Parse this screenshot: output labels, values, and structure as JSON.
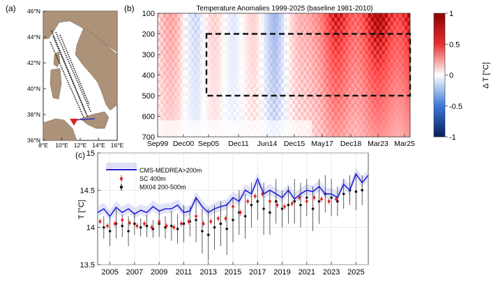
{
  "panel_labels": {
    "a": "(a)",
    "b": "(b)",
    "c": "(c)"
  },
  "chart_data": [
    {
      "type": "map",
      "panel": "(a)",
      "lat_ticks": [
        "36°N",
        "38°N",
        "40°N",
        "42°N",
        "44°N",
        "46°N"
      ],
      "lon_ticks": [
        "8°E",
        "10°E",
        "12°E",
        "14°E",
        "16°E"
      ],
      "colors": {
        "land": "#ab9278",
        "sea": "#ffffff",
        "track": "#111111",
        "marker": "#e02020",
        "section": "#2a2ad0"
      }
    },
    {
      "type": "heatmap",
      "panel": "(b)",
      "title": "Temperature Anomalies 1999-2025 (baseline 1981-2010)",
      "x_tick_labels": [
        "Sep99",
        "Dec00",
        "Sep05",
        "Dec11",
        "Jun14",
        "Dec15",
        "May17",
        "Dec18",
        "Mar23",
        "Mar25"
      ],
      "y_tick_labels": [
        "100",
        "200",
        "300",
        "400",
        "500",
        "600",
        "700"
      ],
      "ylim": [
        700,
        100
      ],
      "colorbar": {
        "label": "Δ T [°C]",
        "ticks": [
          "1",
          "0.5",
          "0",
          "-0.5",
          "-1"
        ],
        "range": [
          -1,
          1
        ],
        "cmap": "blue-white-red"
      },
      "box": {
        "x_from": "Sep05",
        "x_to": "Mar25",
        "depth_from": 200,
        "depth_to": 500
      },
      "anomaly_by_column": [
        0.2,
        0.25,
        -0.15,
        0.1,
        0.0,
        0.05,
        -0.3,
        0.1,
        0.6,
        0.75,
        0.8,
        0.85,
        0.9,
        0.95
      ]
    },
    {
      "type": "line",
      "panel": "(c)",
      "ylabel": "T [°C]",
      "ylim": [
        13.5,
        15
      ],
      "y_tick_labels": [
        "13.5",
        "14",
        "14.5",
        "15"
      ],
      "x_tick_labels": [
        "2005",
        "2007",
        "2009",
        "2011",
        "2013",
        "2015",
        "2017",
        "2019",
        "2021",
        "2023",
        "2025"
      ],
      "xlim": [
        2004,
        2026
      ],
      "legend_position": "top-left",
      "series": [
        {
          "name": "CMS-MEDREA>200m",
          "color": "#1f1fd6",
          "x": [
            2004.0,
            2004.5,
            2005.0,
            2005.5,
            2006.0,
            2006.5,
            2007.0,
            2007.5,
            2008.0,
            2008.5,
            2009.0,
            2009.5,
            2010.0,
            2010.5,
            2011.0,
            2011.5,
            2012.0,
            2012.5,
            2013.0,
            2013.5,
            2014.0,
            2014.5,
            2015.0,
            2015.5,
            2016.0,
            2016.5,
            2017.0,
            2017.5,
            2018.0,
            2018.5,
            2019.0,
            2019.5,
            2020.0,
            2020.5,
            2021.0,
            2021.5,
            2022.0,
            2022.5,
            2023.0,
            2023.5,
            2024.0,
            2024.5,
            2025.0,
            2025.5,
            2026.0
          ],
          "values": [
            14.2,
            14.25,
            14.15,
            14.27,
            14.2,
            14.25,
            14.18,
            14.23,
            14.2,
            14.28,
            14.22,
            14.25,
            14.25,
            14.3,
            14.2,
            14.22,
            14.4,
            14.28,
            14.2,
            14.25,
            14.28,
            14.3,
            14.4,
            14.35,
            14.5,
            14.45,
            14.65,
            14.45,
            14.5,
            14.45,
            14.4,
            14.5,
            14.38,
            14.45,
            14.5,
            14.48,
            14.55,
            14.45,
            14.45,
            14.4,
            14.58,
            14.5,
            14.72,
            14.6,
            14.7
          ]
        },
        {
          "name": "SC 400m",
          "color": "#e02020",
          "x": [
            2004.2,
            2004.8,
            2005.4,
            2006.0,
            2006.6,
            2007.2,
            2007.8,
            2008.4,
            2009.0,
            2009.6,
            2010.2,
            2010.8,
            2011.4,
            2012.0,
            2012.6,
            2013.2,
            2013.8,
            2014.4,
            2015.0,
            2015.6,
            2016.2,
            2016.8,
            2017.4,
            2018.0,
            2018.6,
            2019.2,
            2019.8,
            2020.4,
            2021.0,
            2021.6,
            2022.2,
            2022.8,
            2023.4
          ],
          "values": [
            14.08,
            14.02,
            14.05,
            14.1,
            14.06,
            14.02,
            14.05,
            14.0,
            14.08,
            14.02,
            14.0,
            14.05,
            14.08,
            14.15,
            14.05,
            14.08,
            14.12,
            14.12,
            14.28,
            14.2,
            14.35,
            14.42,
            14.45,
            14.35,
            14.3,
            14.28,
            14.32,
            14.4,
            14.35,
            14.4,
            14.38,
            14.35,
            14.38
          ]
        },
        {
          "name": "MX04 200-500m",
          "color": "#111111",
          "x": [
            2004.5,
            2005.0,
            2005.5,
            2006.0,
            2006.5,
            2007.0,
            2007.5,
            2008.0,
            2008.5,
            2009.0,
            2009.5,
            2010.0,
            2010.5,
            2011.0,
            2011.5,
            2012.0,
            2012.5,
            2013.0,
            2013.5,
            2014.0,
            2014.5,
            2015.0,
            2015.5,
            2016.0,
            2016.5,
            2017.0,
            2017.5,
            2018.0,
            2018.5,
            2019.0,
            2019.5,
            2020.0,
            2020.5,
            2021.0,
            2021.5,
            2022.0,
            2022.5,
            2023.0,
            2023.5,
            2024.0,
            2024.5,
            2025.0,
            2025.5
          ],
          "values": [
            14.0,
            13.95,
            14.05,
            14.02,
            13.95,
            14.05,
            14.0,
            14.02,
            13.98,
            14.05,
            14.0,
            14.02,
            13.98,
            14.05,
            14.08,
            14.1,
            13.95,
            13.9,
            14.0,
            14.05,
            13.98,
            14.1,
            14.2,
            14.15,
            14.3,
            14.35,
            14.25,
            14.2,
            14.35,
            14.25,
            14.3,
            14.35,
            14.3,
            14.4,
            14.25,
            14.35,
            14.45,
            14.4,
            14.35,
            14.45,
            14.5,
            14.48,
            14.5
          ],
          "err": [
            0.15,
            0.2,
            0.2,
            0.15,
            0.2,
            0.15,
            0.12,
            0.15,
            0.12,
            0.18,
            0.15,
            0.2,
            0.2,
            0.25,
            0.2,
            0.3,
            0.3,
            0.35,
            0.3,
            0.3,
            0.35,
            0.3,
            0.3,
            0.3,
            0.3,
            0.25,
            0.35,
            0.3,
            0.3,
            0.25,
            0.25,
            0.3,
            0.3,
            0.25,
            0.3,
            0.3,
            0.25,
            0.25,
            0.2,
            0.2,
            0.2,
            0.25,
            0.2
          ]
        }
      ]
    }
  ]
}
